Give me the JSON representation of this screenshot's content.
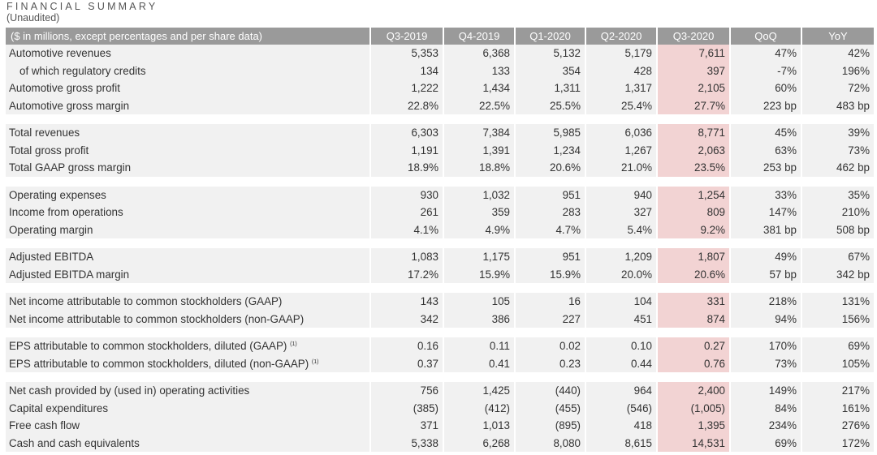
{
  "header": {
    "title": "FINANCIAL SUMMARY",
    "subtitle": "(Unaudited)"
  },
  "table": {
    "columns": [
      "($ in millions, except percentages and per share data)",
      "Q3-2019",
      "Q4-2019",
      "Q1-2020",
      "Q2-2020",
      "Q3-2020",
      "QoQ",
      "YoY"
    ],
    "highlight_color": "#f2d3d3",
    "header_color": "#9a9a9a",
    "groups": [
      [
        {
          "label": "Automotive revenues",
          "values": [
            "5,353",
            "6,368",
            "5,132",
            "5,179",
            "7,611",
            "47%",
            "42%"
          ]
        },
        {
          "label": "of which regulatory credits",
          "indent": true,
          "values": [
            "134",
            "133",
            "354",
            "428",
            "397",
            "-7%",
            "196%"
          ]
        },
        {
          "label": "Automotive gross profit",
          "values": [
            "1,222",
            "1,434",
            "1,311",
            "1,317",
            "2,105",
            "60%",
            "72%"
          ]
        },
        {
          "label": "Automotive gross margin",
          "values": [
            "22.8%",
            "22.5%",
            "25.5%",
            "25.4%",
            "27.7%",
            "223 bp",
            "483 bp"
          ]
        }
      ],
      [
        {
          "label": "Total revenues",
          "values": [
            "6,303",
            "7,384",
            "5,985",
            "6,036",
            "8,771",
            "45%",
            "39%"
          ]
        },
        {
          "label": "Total gross profit",
          "values": [
            "1,191",
            "1,391",
            "1,234",
            "1,267",
            "2,063",
            "63%",
            "73%"
          ]
        },
        {
          "label": "Total GAAP gross margin",
          "values": [
            "18.9%",
            "18.8%",
            "20.6%",
            "21.0%",
            "23.5%",
            "253 bp",
            "462 bp"
          ]
        }
      ],
      [
        {
          "label": "Operating expenses",
          "values": [
            "930",
            "1,032",
            "951",
            "940",
            "1,254",
            "33%",
            "35%"
          ]
        },
        {
          "label": "Income from operations",
          "values": [
            "261",
            "359",
            "283",
            "327",
            "809",
            "147%",
            "210%"
          ]
        },
        {
          "label": "Operating margin",
          "values": [
            "4.1%",
            "4.9%",
            "4.7%",
            "5.4%",
            "9.2%",
            "381 bp",
            "508 bp"
          ]
        }
      ],
      [
        {
          "label": "Adjusted EBITDA",
          "values": [
            "1,083",
            "1,175",
            "951",
            "1,209",
            "1,807",
            "49%",
            "67%"
          ]
        },
        {
          "label": "Adjusted EBITDA margin",
          "values": [
            "17.2%",
            "15.9%",
            "15.9%",
            "20.0%",
            "20.6%",
            "57 bp",
            "342 bp"
          ]
        }
      ],
      [
        {
          "label": "Net income attributable to common stockholders (GAAP)",
          "values": [
            "143",
            "105",
            "16",
            "104",
            "331",
            "218%",
            "131%"
          ]
        },
        {
          "label": "Net income attributable to common stockholders (non-GAAP)",
          "values": [
            "342",
            "386",
            "227",
            "451",
            "874",
            "94%",
            "156%"
          ]
        }
      ],
      [
        {
          "label": "EPS attributable to common stockholders, diluted (GAAP)",
          "footnote": "(1)",
          "values": [
            "0.16",
            "0.11",
            "0.02",
            "0.10",
            "0.27",
            "170%",
            "69%"
          ]
        },
        {
          "label": "EPS attributable to common stockholders, diluted (non-GAAP)",
          "footnote": "(1)",
          "values": [
            "0.37",
            "0.41",
            "0.23",
            "0.44",
            "0.76",
            "73%",
            "105%"
          ]
        }
      ],
      [
        {
          "label": "Net cash provided by (used in) operating activities",
          "values": [
            "756",
            "1,425",
            "(440)",
            "964",
            "2,400",
            "149%",
            "217%"
          ]
        },
        {
          "label": "Capital expenditures",
          "values": [
            "(385)",
            "(412)",
            "(455)",
            "(546)",
            "(1,005)",
            "84%",
            "161%"
          ]
        },
        {
          "label": "Free cash flow",
          "values": [
            "371",
            "1,013",
            "(895)",
            "418",
            "1,395",
            "234%",
            "276%"
          ]
        },
        {
          "label": "Cash and cash equivalents",
          "values": [
            "5,338",
            "6,268",
            "8,080",
            "8,615",
            "14,531",
            "69%",
            "172%"
          ]
        }
      ]
    ]
  }
}
